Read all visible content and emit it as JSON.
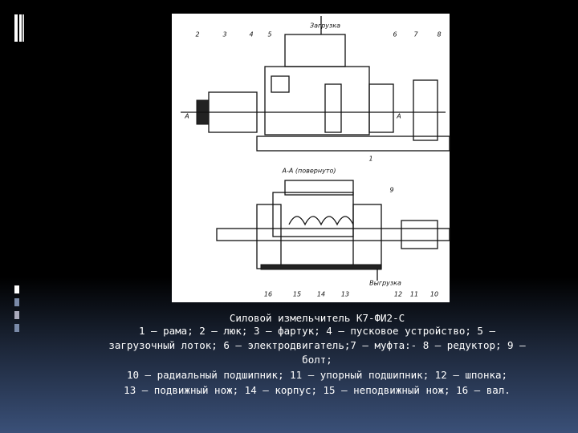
{
  "slide": {
    "figure": {
      "labels": [
        "Загрузка",
        "2",
        "3",
        "4",
        "5",
        "6",
        "7",
        "8",
        "А",
        "А",
        "1",
        "А-А (повернуто)",
        "9",
        "Выгрузка",
        "16",
        "15",
        "14",
        "13",
        "12",
        "11",
        "10"
      ]
    },
    "caption": {
      "title": "Силовой измельчитель К7-ФИ2-С",
      "lines": [
        "1 — рама; 2 — люк; 3 — фартук; 4 — пусковое устройство; 5 —",
        "загрузочный лоток; 6 — электродвигатель;7 — муфта:- 8 — редуктор; 9 —",
        "болт;",
        "10 — радиальный подшипник; 11 — упорный подшипник; 12 — шпонка;",
        "13 — подвижный нож; 14 — корпус; 15 — неподвижный нож; 16 — вал."
      ]
    }
  }
}
